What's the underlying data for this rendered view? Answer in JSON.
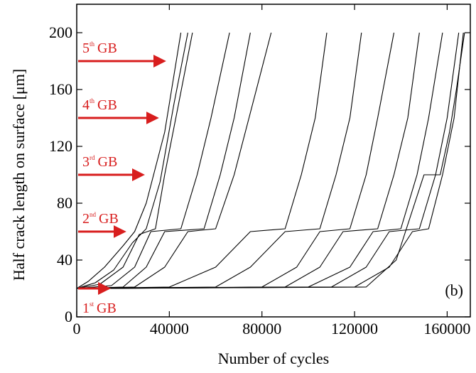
{
  "chart_data": {
    "type": "line",
    "xlabel": "Number of cycles",
    "ylabel": "Half crack length on surface [μm]",
    "panel_label": "(b)",
    "xlim": [
      0,
      170000
    ],
    "ylim": [
      0,
      220
    ],
    "xticks": [
      0,
      40000,
      80000,
      120000,
      160000
    ],
    "yticks": [
      0,
      40,
      80,
      120,
      160,
      200
    ],
    "grid": false,
    "series": [
      {
        "color": "#000000",
        "x": [
          0,
          5000,
          12000,
          20000,
          25000,
          30000,
          38000,
          45000
        ],
        "values": [
          20,
          25,
          35,
          50,
          60,
          80,
          130,
          200
        ]
      },
      {
        "color": "#000000",
        "x": [
          0,
          8000,
          16000,
          24000,
          30000,
          36000,
          42000,
          48000
        ],
        "values": [
          20,
          24,
          33,
          52,
          62,
          95,
          150,
          200
        ]
      },
      {
        "color": "#000000",
        "x": [
          0,
          10000,
          20000,
          27000,
          34000,
          38000,
          44000,
          50000
        ],
        "values": [
          20,
          23,
          35,
          58,
          62,
          100,
          150,
          200
        ]
      },
      {
        "color": "#000000",
        "x": [
          0,
          15000,
          25000,
          32000,
          45000,
          52000,
          58000,
          66000
        ],
        "values": [
          20,
          22,
          35,
          60,
          62,
          100,
          140,
          200
        ]
      },
      {
        "color": "#000000",
        "x": [
          0,
          20000,
          30000,
          38000,
          55000,
          62000,
          68000,
          75000
        ],
        "values": [
          20,
          21,
          35,
          60,
          62,
          100,
          140,
          200
        ]
      },
      {
        "color": "#000000",
        "x": [
          0,
          25000,
          38000,
          48000,
          60000,
          68000,
          76000,
          84000
        ],
        "values": [
          20,
          21,
          35,
          60,
          62,
          100,
          150,
          200
        ]
      },
      {
        "color": "#000000",
        "x": [
          0,
          40000,
          60000,
          75000,
          90000,
          97000,
          103000,
          108000
        ],
        "values": [
          20,
          21,
          35,
          60,
          62,
          100,
          140,
          200
        ]
      },
      {
        "color": "#000000",
        "x": [
          0,
          60000,
          75000,
          90000,
          105000,
          112000,
          118000,
          123000
        ],
        "values": [
          20,
          21,
          35,
          60,
          62,
          100,
          140,
          200
        ]
      },
      {
        "color": "#000000",
        "x": [
          0,
          80000,
          95000,
          105000,
          118000,
          125000,
          130000,
          137000
        ],
        "values": [
          20,
          21,
          35,
          60,
          62,
          100,
          140,
          200
        ]
      },
      {
        "color": "#000000",
        "x": [
          0,
          90000,
          105000,
          115000,
          130000,
          137000,
          143000,
          148000
        ],
        "values": [
          20,
          21,
          35,
          60,
          62,
          100,
          140,
          200
        ]
      },
      {
        "color": "#000000",
        "x": [
          0,
          100000,
          118000,
          128000,
          140000,
          147000,
          152000,
          158000
        ],
        "values": [
          20,
          21,
          35,
          60,
          62,
          100,
          140,
          200
        ]
      },
      {
        "color": "#000000",
        "x": [
          0,
          110000,
          125000,
          135000,
          148000,
          155000,
          160000,
          165000
        ],
        "values": [
          20,
          21,
          35,
          60,
          62,
          100,
          140,
          200
        ]
      },
      {
        "color": "#000000",
        "x": [
          0,
          120000,
          135000,
          145000,
          152000,
          158000,
          163000,
          167000
        ],
        "values": [
          20,
          21,
          35,
          60,
          62,
          100,
          140,
          200
        ]
      },
      {
        "color": "#000000",
        "x": [
          0,
          125000,
          138000,
          150000,
          157000,
          161000,
          164000,
          167500
        ],
        "values": [
          20,
          21,
          40,
          100,
          100,
          130,
          160,
          200
        ]
      }
    ],
    "annotations": [
      {
        "ordinal": "1",
        "suffix": "st",
        "label": "GB",
        "y": 20,
        "x": 17500,
        "color": "#d81e1e"
      },
      {
        "ordinal": "2",
        "suffix": "nd",
        "label": "GB",
        "y": 60,
        "x": 24200,
        "color": "#d81e1e"
      },
      {
        "ordinal": "3",
        "suffix": "rd",
        "label": "GB",
        "y": 100,
        "x": 32200,
        "color": "#d81e1e"
      },
      {
        "ordinal": "4",
        "suffix": "th",
        "label": "GB",
        "y": 140,
        "x": 38300,
        "color": "#d81e1e"
      },
      {
        "ordinal": "5",
        "suffix": "th",
        "label": "GB",
        "y": 180,
        "x": 41400,
        "color": "#d81e1e"
      }
    ]
  }
}
